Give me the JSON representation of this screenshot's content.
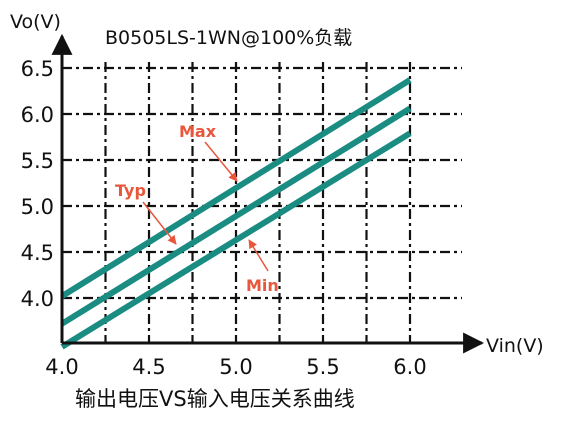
{
  "chart_data": {
    "type": "line",
    "title": "B0505LS-1WN@100%负载",
    "caption": "输出电压VS输入电压关系曲线",
    "xlabel": "Vin(V)",
    "ylabel": "Vo(V)",
    "xlim": [
      4.0,
      6.0
    ],
    "ylim": [
      3.5,
      6.5
    ],
    "x_ticks": [
      "4.0",
      "4.5",
      "5.0",
      "5.5",
      "6.0"
    ],
    "y_ticks": [
      "4.0",
      "4.5",
      "5.0",
      "5.5",
      "6.0",
      "6.5"
    ],
    "grid": true,
    "grid_style": "dash-dot",
    "series": [
      {
        "name": "Max",
        "x": [
          4.0,
          6.0
        ],
        "y": [
          4.02,
          6.37
        ]
      },
      {
        "name": "Typ",
        "x": [
          4.0,
          6.0
        ],
        "y": [
          3.72,
          6.06
        ]
      },
      {
        "name": "Min",
        "x": [
          4.0,
          6.0
        ],
        "y": [
          3.47,
          5.79
        ]
      }
    ],
    "colors": {
      "line": "#1a8c82",
      "annotation": "#e8573c",
      "axis": "#111111",
      "grid": "#111111"
    }
  }
}
